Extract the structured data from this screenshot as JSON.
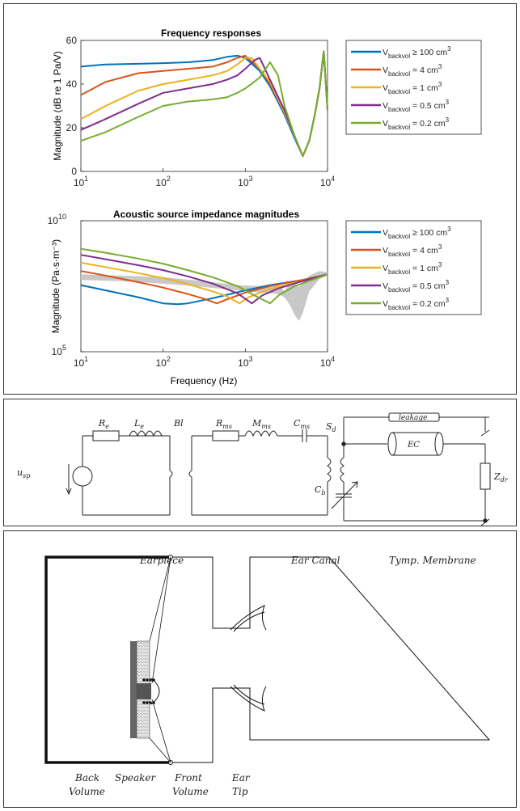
{
  "charts": {
    "top": {
      "title": "Frequency responses",
      "ylabel": "Magnitude (dB re 1 Pa/V)",
      "xlabel": "",
      "yticks": [
        "0",
        "20",
        "40",
        "60"
      ],
      "xticks_exp": [
        "1",
        "2",
        "3",
        "4"
      ]
    },
    "bottom": {
      "title": "Acoustic source impedance magnitudes",
      "ylabel": "Magnitude (Pa·s·m⁻³)",
      "xlabel": "Frequency (Hz)",
      "yticks_exp": [
        "10",
        "5"
      ],
      "xticks_exp": [
        "1",
        "2",
        "3",
        "4"
      ]
    },
    "tick_base": "10",
    "legend": [
      {
        "sub": "backvol",
        "rel": "≥ 100 cm",
        "sup": "3"
      },
      {
        "sub": "backvol",
        "rel": "= 4 cm",
        "sup": "3"
      },
      {
        "sub": "backvol",
        "rel": "= 1 cm",
        "sup": "3"
      },
      {
        "sub": "backvol",
        "rel": "= 0.5 cm",
        "sup": "3"
      },
      {
        "sub": "backvol",
        "rel": "= 0.2 cm",
        "sup": "3"
      }
    ],
    "legend_symbol": "V"
  },
  "chart_data": [
    {
      "type": "line",
      "title": "Frequency responses",
      "ylabel": "Magnitude (dB re 1 Pa/V)",
      "xscale": "log",
      "xlim": [
        10,
        10000
      ],
      "ylim": [
        0,
        60
      ],
      "legend_position": "right",
      "series": [
        {
          "name": "V_backvol ≥ 100 cm3",
          "color": "#0072BD",
          "x": [
            10,
            20,
            50,
            100,
            200,
            400,
            600,
            800,
            1000,
            1500,
            2000,
            3000,
            4000,
            5000,
            6000,
            7000,
            8000,
            9000,
            10000
          ],
          "y": [
            48,
            49,
            49.3,
            49.6,
            50,
            51,
            52.5,
            53,
            52,
            46,
            39,
            26,
            15,
            7,
            14,
            26,
            38,
            55,
            28
          ]
        },
        {
          "name": "V_backvol = 4 cm3",
          "color": "#D95319",
          "x": [
            10,
            20,
            50,
            100,
            200,
            400,
            600,
            800,
            1000,
            1500,
            2000,
            3000,
            4000,
            5000,
            6000,
            7000,
            8000,
            9000,
            10000
          ],
          "y": [
            35,
            41,
            45,
            46,
            47,
            48,
            50,
            52,
            53,
            47,
            40,
            27,
            16,
            7,
            14,
            26,
            38,
            55,
            28
          ]
        },
        {
          "name": "V_backvol = 1 cm3",
          "color": "#EDB120",
          "x": [
            10,
            20,
            50,
            100,
            200,
            400,
            600,
            800,
            1000,
            1200,
            1500,
            2000,
            3000,
            4000,
            5000,
            6000,
            7000,
            8000,
            9000,
            10000
          ],
          "y": [
            24,
            30,
            37,
            40,
            42,
            44,
            46,
            49,
            52,
            52,
            47,
            41,
            27,
            16,
            7,
            14,
            26,
            38,
            55,
            28
          ]
        },
        {
          "name": "V_backvol = 0.5 cm3",
          "color": "#7E2F8E",
          "x": [
            10,
            20,
            50,
            100,
            200,
            400,
            600,
            800,
            1000,
            1300,
            1500,
            2000,
            3000,
            4000,
            5000,
            6000,
            7000,
            8000,
            9000,
            10000
          ],
          "y": [
            19,
            24,
            31,
            36,
            38,
            40,
            42,
            44,
            47,
            51,
            52,
            42,
            28,
            16,
            7,
            14,
            26,
            38,
            55,
            28
          ]
        },
        {
          "name": "V_backvol = 0.2 cm3",
          "color": "#77AC30",
          "x": [
            10,
            20,
            50,
            100,
            200,
            400,
            600,
            800,
            1000,
            1500,
            2000,
            2500,
            3000,
            4000,
            5000,
            6000,
            7000,
            8000,
            9000,
            10000
          ],
          "y": [
            14,
            18,
            25,
            30,
            32,
            33,
            34,
            36,
            38,
            43,
            50,
            44,
            30,
            16,
            7,
            14,
            26,
            38,
            55,
            28
          ]
        }
      ]
    },
    {
      "type": "line",
      "title": "Acoustic source impedance magnitudes",
      "xlabel": "Frequency (Hz)",
      "ylabel": "Magnitude (Pa·s·m⁻³)",
      "xscale": "log",
      "yscale": "log",
      "xlim": [
        10,
        10000
      ],
      "ylim": [
        100000,
        10000000000
      ],
      "legend_position": "right",
      "series": [
        {
          "name": "V_backvol ≥ 100 cm3",
          "color": "#0072BD",
          "x": [
            10,
            20,
            50,
            100,
            150,
            200,
            400,
            1000,
            2000,
            5000,
            10000
          ],
          "y": [
            35000000.0,
            22000000.0,
            12000000.0,
            7000000.0,
            6500000.0,
            7000000.0,
            11000000.0,
            22000000.0,
            35000000.0,
            55000000.0,
            90000000.0
          ]
        },
        {
          "name": "V_backvol = 4 cm3",
          "color": "#D95319",
          "x": [
            10,
            20,
            50,
            100,
            200,
            300,
            450,
            600,
            1000,
            2000,
            5000,
            10000
          ],
          "y": [
            120000000.0,
            80000000.0,
            45000000.0,
            28000000.0,
            16000000.0,
            11000000.0,
            7000000.0,
            10000000.0,
            18000000.0,
            32000000.0,
            55000000.0,
            90000000.0
          ]
        },
        {
          "name": "V_backvol = 1 cm3",
          "color": "#EDB120",
          "x": [
            10,
            20,
            50,
            100,
            200,
            400,
            600,
            850,
            1100,
            2000,
            5000,
            10000
          ],
          "y": [
            250000000.0,
            170000000.0,
            100000000.0,
            65000000.0,
            38000000.0,
            20000000.0,
            13000000.0,
            7000000.0,
            12000000.0,
            25000000.0,
            50000000.0,
            90000000.0
          ]
        },
        {
          "name": "V_backvol = 0.5 cm3",
          "color": "#7E2F8E",
          "x": [
            10,
            20,
            50,
            100,
            200,
            400,
            800,
            1200,
            1600,
            2500,
            5000,
            10000
          ],
          "y": [
            500000000.0,
            340000000.0,
            200000000.0,
            130000000.0,
            75000000.0,
            40000000.0,
            17000000.0,
            7000000.0,
            14000000.0,
            26000000.0,
            50000000.0,
            90000000.0
          ]
        },
        {
          "name": "V_backvol = 0.2 cm3",
          "color": "#77AC30",
          "x": [
            10,
            20,
            50,
            100,
            200,
            400,
            800,
            1300,
            2000,
            2600,
            4000,
            10000
          ],
          "y": [
            850000000.0,
            600000000.0,
            360000000.0,
            230000000.0,
            130000000.0,
            70000000.0,
            32000000.0,
            14000000.0,
            7000000.0,
            15000000.0,
            32000000.0,
            90000000.0
          ]
        }
      ]
    }
  ],
  "circuit": {
    "labels": {
      "Re": [
        "R",
        "e"
      ],
      "Le": [
        "L",
        "e"
      ],
      "Bl": [
        "Bl",
        ""
      ],
      "Rms": [
        "R",
        "ms"
      ],
      "Mms": [
        "M",
        "ms"
      ],
      "Cms": [
        "C",
        "ms"
      ],
      "Sd": [
        "S",
        "d"
      ],
      "leakage": [
        "leakage",
        ""
      ],
      "EC": [
        "EC",
        ""
      ],
      "Zdr": [
        "Z",
        "dr"
      ],
      "Cb": [
        "C",
        "b"
      ],
      "usp": [
        "u",
        "sp"
      ]
    }
  },
  "earpiece": {
    "labels": {
      "earpiece": "Earpiece",
      "ear_canal": "Ear Canal",
      "tymp": "Tymp. Membrane",
      "back_volume": [
        "Back",
        "Volume"
      ],
      "speaker": "Speaker",
      "front_volume": [
        "Front",
        "Volume"
      ],
      "ear_tip": [
        "Ear",
        "Tip"
      ]
    }
  }
}
